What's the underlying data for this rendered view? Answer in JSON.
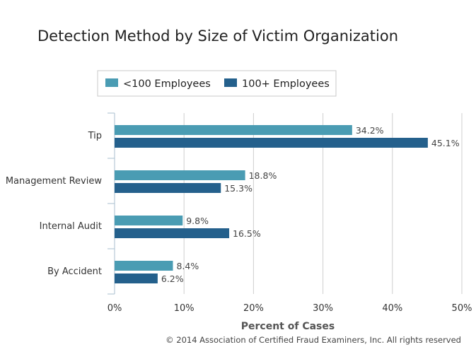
{
  "title": "Detection Method by Size of Victim Organization",
  "legend": [
    {
      "label": "<100 Employees",
      "color": "#4a9cb3"
    },
    {
      "label": "100+ Employees",
      "color": "#24608c"
    }
  ],
  "credit": "© 2014 Association of Certified Fraud Examiners, Inc. All rights reserved",
  "chart_data": {
    "type": "bar",
    "orientation": "horizontal",
    "title": "Detection Method by Size of Victim Organization",
    "xlabel": "Percent of Cases",
    "ylabel": "",
    "categories": [
      "Tip",
      "Management Review",
      "Internal Audit",
      "By Accident"
    ],
    "series": [
      {
        "name": "<100 Employees",
        "values": [
          34.2,
          18.8,
          9.8,
          8.4
        ],
        "color": "#4a9cb3"
      },
      {
        "name": "100+ Employees",
        "values": [
          45.1,
          15.3,
          16.5,
          6.2
        ],
        "color": "#24608c"
      }
    ],
    "xlim": [
      0,
      50
    ],
    "xticks": [
      0,
      10,
      20,
      30,
      40,
      50
    ],
    "tick_format": "{v}%",
    "label_format": "{v}%",
    "grid": true,
    "legend_position": "top-left"
  }
}
